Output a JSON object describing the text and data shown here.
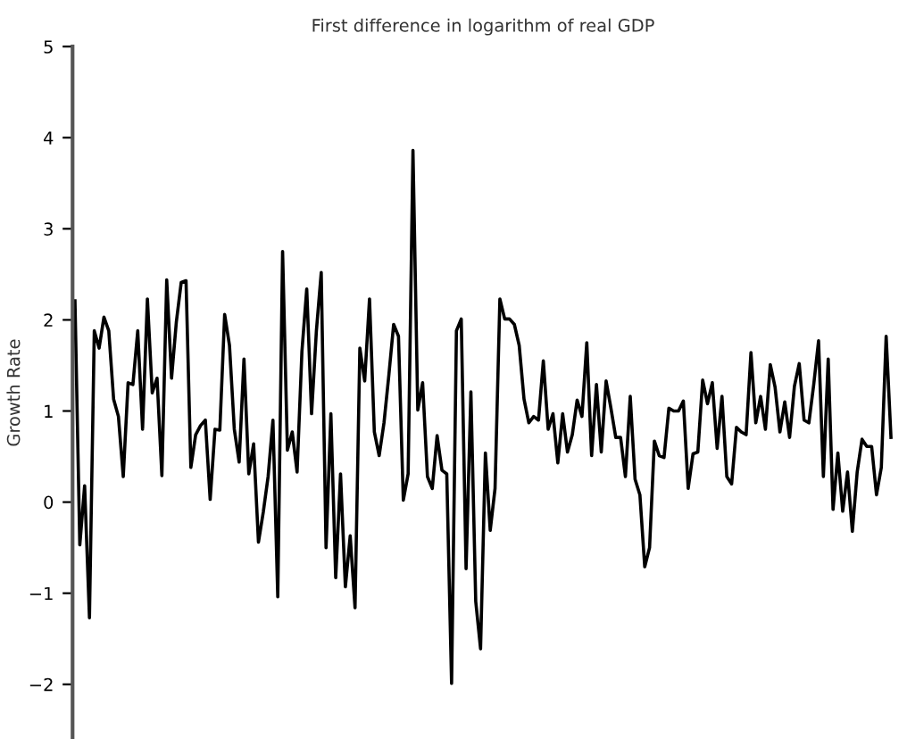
{
  "chart_data": {
    "type": "line",
    "title": "First difference in logarithm of real GDP",
    "ylabel": "Growth Rate",
    "categories": [
      null,
      null,
      null,
      null,
      null,
      null,
      null,
      null,
      null,
      null,
      null,
      null,
      null,
      null,
      null,
      null,
      null,
      null,
      null,
      null,
      null,
      null,
      null,
      null,
      null,
      null,
      null,
      null,
      null,
      null,
      null,
      null,
      null,
      null,
      null,
      null,
      null,
      null,
      null,
      null,
      null,
      null,
      null,
      null,
      null,
      null,
      null,
      null,
      null,
      null,
      null,
      null,
      null,
      null,
      null,
      null,
      null,
      null,
      null,
      null,
      null,
      null,
      null,
      null,
      null,
      null,
      null,
      null,
      null,
      null,
      null,
      null,
      null,
      null,
      null,
      null,
      null,
      null,
      null,
      null,
      null,
      null,
      null,
      null,
      null,
      null,
      null,
      null,
      null,
      null,
      null,
      null,
      null,
      null,
      null,
      null,
      null,
      null,
      null,
      null,
      null,
      null,
      null,
      null,
      null,
      null,
      null,
      null,
      null,
      null,
      null,
      null,
      null,
      null,
      null,
      null,
      null,
      null,
      null,
      null,
      null,
      null,
      null,
      null,
      null,
      null,
      null,
      null,
      null,
      null,
      null,
      null,
      null,
      null,
      null,
      null,
      null,
      null,
      null,
      null,
      null,
      null,
      null,
      null,
      null,
      null,
      null,
      null,
      null,
      null,
      null,
      null,
      null,
      null,
      null,
      null,
      null,
      null,
      null,
      null,
      null,
      null,
      null,
      null,
      null,
      null,
      null,
      null,
      null,
      null
    ],
    "series": [
      {
        "color": "#000000",
        "values": [
          2.21,
          -0.47,
          0.18,
          -1.27,
          1.88,
          1.69,
          2.03,
          1.88,
          1.13,
          0.94,
          0.28,
          1.31,
          1.29,
          1.88,
          0.8,
          2.23,
          1.2,
          1.36,
          0.29,
          2.44,
          1.36,
          1.98,
          2.41,
          2.43,
          0.38,
          0.74,
          0.84,
          0.9,
          0.03,
          0.8,
          0.79,
          2.06,
          1.72,
          0.8,
          0.44,
          1.57,
          0.31,
          0.64,
          -0.44,
          -0.11,
          0.28,
          0.9,
          -1.04,
          2.75,
          0.57,
          0.77,
          0.33,
          1.65,
          2.34,
          0.97,
          1.88,
          2.52,
          -0.5,
          0.97,
          -0.83,
          0.31,
          -0.93,
          -0.37,
          -1.16,
          1.69,
          1.33,
          2.23,
          0.77,
          0.51,
          0.87,
          1.39,
          1.95,
          1.82,
          0.02,
          0.31,
          3.86,
          1.01,
          1.31,
          0.28,
          0.15,
          0.73,
          0.35,
          0.31,
          -1.99,
          1.88,
          2.01,
          -0.73,
          1.21,
          -1.09,
          -1.61,
          0.54,
          -0.31,
          0.15,
          2.23,
          2.01,
          2.01,
          1.95,
          1.72,
          1.13,
          0.87,
          0.94,
          0.9,
          1.55,
          0.8,
          0.97,
          0.43,
          0.97,
          0.55,
          0.74,
          1.12,
          0.94,
          1.75,
          0.51,
          1.29,
          0.55,
          1.33,
          1.03,
          0.71,
          0.71,
          0.28,
          1.16,
          0.25,
          0.08,
          -0.71,
          -0.5,
          0.67,
          0.51,
          0.49,
          1.03,
          1.0,
          1.0,
          1.11,
          0.15,
          0.53,
          0.55,
          1.34,
          1.08,
          1.31,
          0.59,
          1.16,
          0.28,
          0.2,
          0.82,
          0.77,
          0.74,
          1.64,
          0.87,
          1.16,
          0.8,
          1.51,
          1.26,
          0.77,
          1.1,
          0.71,
          1.27,
          1.52,
          0.9,
          0.87,
          1.29,
          1.77,
          0.28,
          1.57,
          -0.08,
          0.54,
          -0.1,
          0.33,
          -0.32,
          0.33,
          0.69,
          0.61,
          0.61,
          0.08,
          0.38,
          1.82,
          0.71
        ]
      }
    ],
    "ylim": [
      -2.6,
      5
    ],
    "yticks": [
      -2,
      -1,
      0,
      1,
      2,
      3,
      4,
      5
    ],
    "tick_labels": "y",
    "grid": false,
    "marker": "none",
    "line_style": "solid"
  }
}
